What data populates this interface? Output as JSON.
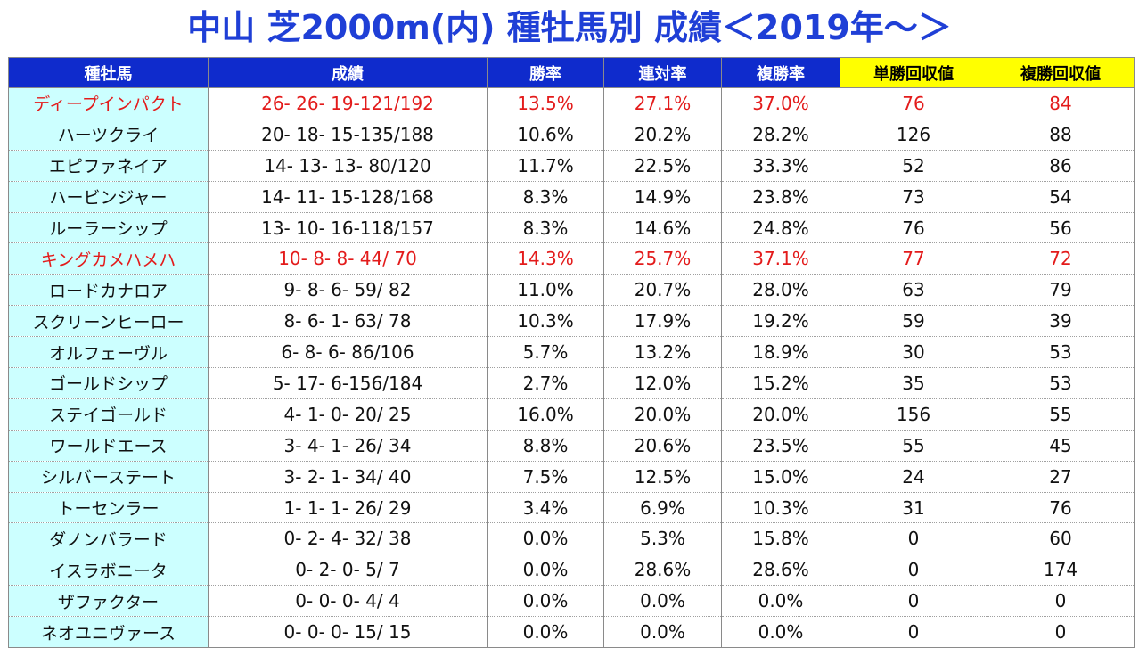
{
  "title": "中山 芝2000m(内) 種牡馬別 成績＜2019年～＞",
  "colors": {
    "title": "#1f3fd6",
    "header_bg": "#0f2bcc",
    "header_yellow_bg": "#ffff00",
    "sire_bg": "#ccffff",
    "highlight_text": "#e31b1b"
  },
  "table": {
    "headers": [
      "種牡馬",
      "成績",
      "勝率",
      "連対率",
      "複勝率",
      "単勝回収値",
      "複勝回収値"
    ],
    "rows": [
      {
        "sire": "ディープインパクト",
        "record": "26- 26- 19-121/192",
        "win": "13.5%",
        "top2": "27.1%",
        "top3": "37.0%",
        "win_return": "76",
        "place_return": "84",
        "highlight": true
      },
      {
        "sire": "ハーツクライ",
        "record": "20- 18- 15-135/188",
        "win": "10.6%",
        "top2": "20.2%",
        "top3": "28.2%",
        "win_return": "126",
        "place_return": "88",
        "highlight": false
      },
      {
        "sire": "エピファネイア",
        "record": "14- 13- 13- 80/120",
        "win": "11.7%",
        "top2": "22.5%",
        "top3": "33.3%",
        "win_return": "52",
        "place_return": "86",
        "highlight": false
      },
      {
        "sire": "ハービンジャー",
        "record": "14- 11- 15-128/168",
        "win": "8.3%",
        "top2": "14.9%",
        "top3": "23.8%",
        "win_return": "73",
        "place_return": "54",
        "highlight": false
      },
      {
        "sire": "ルーラーシップ",
        "record": "13- 10- 16-118/157",
        "win": "8.3%",
        "top2": "14.6%",
        "top3": "24.8%",
        "win_return": "76",
        "place_return": "56",
        "highlight": false
      },
      {
        "sire": "キングカメハメハ",
        "record": "10-  8-  8- 44/ 70",
        "win": "14.3%",
        "top2": "25.7%",
        "top3": "37.1%",
        "win_return": "77",
        "place_return": "72",
        "highlight": true
      },
      {
        "sire": "ロードカナロア",
        "record": "9-  8-  6- 59/ 82",
        "win": "11.0%",
        "top2": "20.7%",
        "top3": "28.0%",
        "win_return": "63",
        "place_return": "79",
        "highlight": false
      },
      {
        "sire": "スクリーンヒーロー",
        "record": "8-  6-  1- 63/ 78",
        "win": "10.3%",
        "top2": "17.9%",
        "top3": "19.2%",
        "win_return": "59",
        "place_return": "39",
        "highlight": false
      },
      {
        "sire": "オルフェーヴル",
        "record": "6-  8-  6- 86/106",
        "win": "5.7%",
        "top2": "13.2%",
        "top3": "18.9%",
        "win_return": "30",
        "place_return": "53",
        "highlight": false
      },
      {
        "sire": "ゴールドシップ",
        "record": "5- 17-  6-156/184",
        "win": "2.7%",
        "top2": "12.0%",
        "top3": "15.2%",
        "win_return": "35",
        "place_return": "53",
        "highlight": false
      },
      {
        "sire": "ステイゴールド",
        "record": "4-  1-  0- 20/ 25",
        "win": "16.0%",
        "top2": "20.0%",
        "top3": "20.0%",
        "win_return": "156",
        "place_return": "55",
        "highlight": false
      },
      {
        "sire": "ワールドエース",
        "record": "3-  4-  1- 26/ 34",
        "win": "8.8%",
        "top2": "20.6%",
        "top3": "23.5%",
        "win_return": "55",
        "place_return": "45",
        "highlight": false
      },
      {
        "sire": "シルバーステート",
        "record": "3-  2-  1- 34/ 40",
        "win": "7.5%",
        "top2": "12.5%",
        "top3": "15.0%",
        "win_return": "24",
        "place_return": "27",
        "highlight": false
      },
      {
        "sire": "トーセンラー",
        "record": "1-  1-  1- 26/ 29",
        "win": "3.4%",
        "top2": "6.9%",
        "top3": "10.3%",
        "win_return": "31",
        "place_return": "76",
        "highlight": false
      },
      {
        "sire": "ダノンバラード",
        "record": "0-  2-  4- 32/ 38",
        "win": "0.0%",
        "top2": "5.3%",
        "top3": "15.8%",
        "win_return": "0",
        "place_return": "60",
        "highlight": false
      },
      {
        "sire": "イスラボニータ",
        "record": "0-  2-  0-  5/  7",
        "win": "0.0%",
        "top2": "28.6%",
        "top3": "28.6%",
        "win_return": "0",
        "place_return": "174",
        "highlight": false
      },
      {
        "sire": "ザファクター",
        "record": "0-  0-  0-  4/  4",
        "win": "0.0%",
        "top2": "0.0%",
        "top3": "0.0%",
        "win_return": "0",
        "place_return": "0",
        "highlight": false
      },
      {
        "sire": "ネオユニヴァース",
        "record": "0-  0-  0- 15/ 15",
        "win": "0.0%",
        "top2": "0.0%",
        "top3": "0.0%",
        "win_return": "0",
        "place_return": "0",
        "highlight": false
      }
    ]
  }
}
